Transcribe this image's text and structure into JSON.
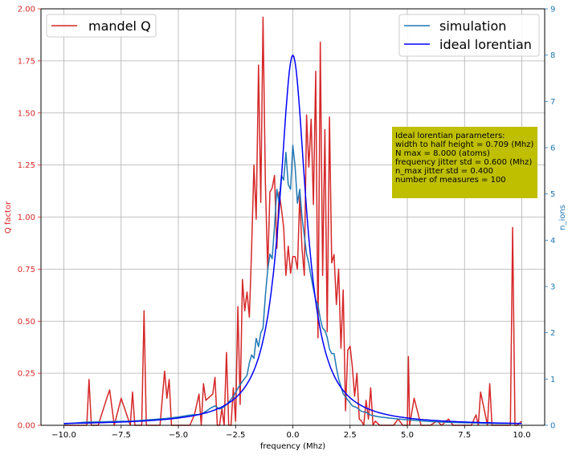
{
  "chart_data": {
    "type": "line",
    "xlabel": "frequency (Mhz)",
    "ylabel_left": "Q factor",
    "ylabel_right": "n_ions",
    "xlim": [
      -11,
      11
    ],
    "ylim_left": [
      0,
      2
    ],
    "ylim_right": [
      0,
      9
    ],
    "grid": true,
    "x_ticks": [
      -10.0,
      -7.5,
      -5.0,
      -2.5,
      0.0,
      2.5,
      5.0,
      7.5,
      10.0
    ],
    "x_tick_labels": [
      "−10.0",
      "−7.5",
      "−5.0",
      "−2.5",
      "0.0",
      "2.5",
      "5.0",
      "7.5",
      "10.0"
    ],
    "y_left_ticks": [
      0,
      0.25,
      0.5,
      0.75,
      1.0,
      1.25,
      1.5,
      1.75,
      2.0
    ],
    "y_left_tick_labels": [
      "0.00",
      "0.25",
      "0.50",
      "0.75",
      "1.00",
      "1.25",
      "1.50",
      "1.75",
      "2.00"
    ],
    "y_right_ticks": [
      0,
      1,
      2,
      3,
      4,
      5,
      6,
      7,
      8,
      9
    ],
    "y_right_tick_labels": [
      "0",
      "1",
      "2",
      "3",
      "4",
      "5",
      "6",
      "7",
      "8",
      "9"
    ],
    "colors": {
      "mandel_q": "#d62728",
      "simulation": "#1f77b4",
      "ideal": "#0000ff",
      "left_axis": "#d62728",
      "right_axis": "#1f77b4",
      "annotation_bg": "#bfbf00"
    },
    "legend_left": {
      "placement": "upper-left",
      "entries": [
        {
          "name": "mandel Q",
          "series": "mandel_q"
        }
      ]
    },
    "legend_right": {
      "placement": "upper-right",
      "entries": [
        {
          "name": "simulation",
          "series": "simulation"
        },
        {
          "name": "ideal lorentian",
          "series": "ideal"
        }
      ]
    },
    "annotation": {
      "placement": "right",
      "lines": [
        "Ideal lorentian parameters:",
        "width to half height = 0.709 (Mhz)",
        "N max = 8.000 (atoms)",
        "frequency jitter std = 0.600 (Mhz)",
        "n_max jitter std = 0.400",
        "number of measures = 100"
      ]
    },
    "series": [
      {
        "key": "mandel_q",
        "name": "mandel Q",
        "axis": "left",
        "x": [
          -10.0,
          -9.5,
          -9.0,
          -8.9,
          -8.8,
          -8.5,
          -8.1,
          -8.0,
          -7.8,
          -7.5,
          -7.1,
          -7.0,
          -6.9,
          -6.6,
          -6.5,
          -6.4,
          -6.3,
          -6.1,
          -6.0,
          -5.8,
          -5.6,
          -5.5,
          -5.4,
          -5.3,
          -5.2,
          -5.0,
          -4.8,
          -4.5,
          -4.3,
          -4.1,
          -4.0,
          -3.9,
          -3.8,
          -3.5,
          -3.4,
          -3.3,
          -3.2,
          -3.1,
          -3.0,
          -2.9,
          -2.8,
          -2.7,
          -2.6,
          -2.5,
          -2.4,
          -2.3,
          -2.2,
          -2.1,
          -2.0,
          -1.9,
          -1.8,
          -1.7,
          -1.6,
          -1.5,
          -1.4,
          -1.3,
          -1.2,
          -1.1,
          -1.0,
          -0.9,
          -0.8,
          -0.7,
          -0.6,
          -0.5,
          -0.4,
          -0.3,
          -0.2,
          -0.1,
          0.0,
          0.1,
          0.2,
          0.3,
          0.4,
          0.5,
          0.6,
          0.7,
          0.8,
          0.9,
          1.0,
          1.1,
          1.2,
          1.3,
          1.4,
          1.5,
          1.6,
          1.7,
          1.8,
          1.9,
          2.0,
          2.1,
          2.2,
          2.3,
          2.4,
          2.5,
          2.6,
          2.7,
          2.8,
          2.9,
          3.0,
          3.1,
          3.2,
          3.3,
          3.4,
          3.5,
          3.6,
          3.8,
          4.0,
          4.2,
          4.4,
          4.6,
          4.8,
          5.0,
          5.05,
          5.1,
          5.3,
          5.6,
          5.8,
          6.0,
          6.3,
          6.5,
          6.8,
          7.0,
          7.2,
          7.5,
          7.8,
          8.0,
          8.1,
          8.2,
          8.5,
          8.6,
          8.7,
          9.0,
          9.3,
          9.5,
          9.6,
          9.7,
          9.8,
          10.0
        ],
        "y": [
          0.0,
          0.0,
          0.0,
          0.22,
          0.0,
          0.0,
          0.14,
          0.17,
          0.0,
          0.13,
          0.0,
          0.16,
          0.0,
          0.0,
          0.55,
          0.0,
          0.0,
          0.0,
          0.0,
          0.0,
          0.26,
          0.13,
          0.22,
          0.0,
          0.0,
          0.0,
          0.0,
          0.0,
          0.05,
          0.15,
          0.0,
          0.2,
          0.12,
          0.15,
          0.23,
          0.0,
          0.0,
          0.08,
          0.0,
          0.35,
          0.0,
          0.0,
          0.18,
          0.02,
          0.57,
          0.1,
          0.7,
          0.55,
          0.64,
          0.52,
          0.85,
          1.25,
          0.99,
          1.73,
          1.07,
          1.96,
          1.17,
          0.75,
          1.12,
          1.14,
          1.2,
          0.85,
          1.12,
          1.04,
          0.95,
          0.72,
          0.86,
          0.73,
          0.81,
          0.81,
          0.75,
          1.1,
          0.85,
          0.72,
          1.49,
          1.24,
          1.47,
          1.06,
          1.7,
          0.42,
          1.84,
          0.72,
          1.42,
          0.45,
          1.48,
          0.78,
          0.82,
          0.58,
          0.75,
          0.37,
          0.65,
          0.07,
          0.36,
          0.38,
          0.28,
          0.14,
          0.25,
          0.03,
          0.02,
          0.0,
          0.12,
          0.03,
          0.18,
          0.0,
          0.02,
          0.0,
          0.0,
          0.0,
          0.0,
          0.03,
          0.0,
          0.0,
          0.33,
          0.0,
          0.13,
          0.0,
          0.0,
          0.0,
          0.02,
          0.0,
          0.03,
          0.0,
          0.0,
          0.0,
          0.0,
          0.05,
          0.0,
          0.16,
          0.0,
          0.2,
          0.0,
          0.0,
          0.0,
          0.0,
          0.95,
          0.0,
          0.0,
          0.02
        ]
      },
      {
        "key": "simulation",
        "name": "simulation",
        "axis": "right",
        "x": [
          -10.0,
          -9.0,
          -8.0,
          -7.0,
          -6.0,
          -5.5,
          -5.0,
          -4.5,
          -4.0,
          -3.8,
          -3.6,
          -3.4,
          -3.2,
          -3.0,
          -2.8,
          -2.6,
          -2.4,
          -2.2,
          -2.0,
          -1.9,
          -1.8,
          -1.7,
          -1.6,
          -1.5,
          -1.4,
          -1.3,
          -1.2,
          -1.1,
          -1.0,
          -0.9,
          -0.8,
          -0.7,
          -0.6,
          -0.5,
          -0.4,
          -0.3,
          -0.2,
          -0.1,
          0.0,
          0.1,
          0.2,
          0.3,
          0.4,
          0.5,
          0.6,
          0.7,
          0.8,
          0.9,
          1.0,
          1.1,
          1.2,
          1.3,
          1.4,
          1.5,
          1.6,
          1.7,
          1.8,
          1.9,
          2.0,
          2.2,
          2.4,
          2.6,
          2.8,
          3.0,
          3.2,
          3.4,
          3.6,
          3.8,
          4.0,
          4.5,
          5.0,
          5.5,
          6.0,
          7.0,
          8.0,
          9.0,
          10.0
        ],
        "y": [
          0.03,
          0.07,
          0.08,
          0.09,
          0.13,
          0.15,
          0.18,
          0.22,
          0.24,
          0.3,
          0.37,
          0.42,
          0.35,
          0.4,
          0.5,
          0.62,
          0.8,
          0.95,
          1.08,
          1.35,
          1.52,
          1.45,
          1.88,
          1.7,
          2.0,
          2.1,
          2.8,
          3.35,
          3.7,
          3.6,
          4.3,
          5.1,
          4.8,
          5.4,
          5.3,
          5.9,
          5.2,
          5.1,
          6.05,
          5.6,
          4.8,
          5.1,
          4.5,
          4.1,
          3.7,
          3.5,
          3.2,
          2.95,
          2.7,
          2.6,
          2.3,
          2.1,
          2.05,
          1.9,
          1.65,
          1.55,
          1.55,
          1.25,
          1.0,
          0.68,
          0.55,
          0.42,
          0.38,
          0.3,
          0.28,
          0.22,
          0.2,
          0.18,
          0.17,
          0.14,
          0.12,
          0.1,
          0.08,
          0.06,
          0.05,
          0.04,
          0.04
        ]
      },
      {
        "key": "ideal",
        "name": "ideal lorentian",
        "axis": "right",
        "lorentzian": {
          "x0": 0,
          "amplitude": 8.0,
          "hwhm": 0.709,
          "x_from": -10,
          "x_to": 10,
          "points": 401
        }
      }
    ]
  }
}
